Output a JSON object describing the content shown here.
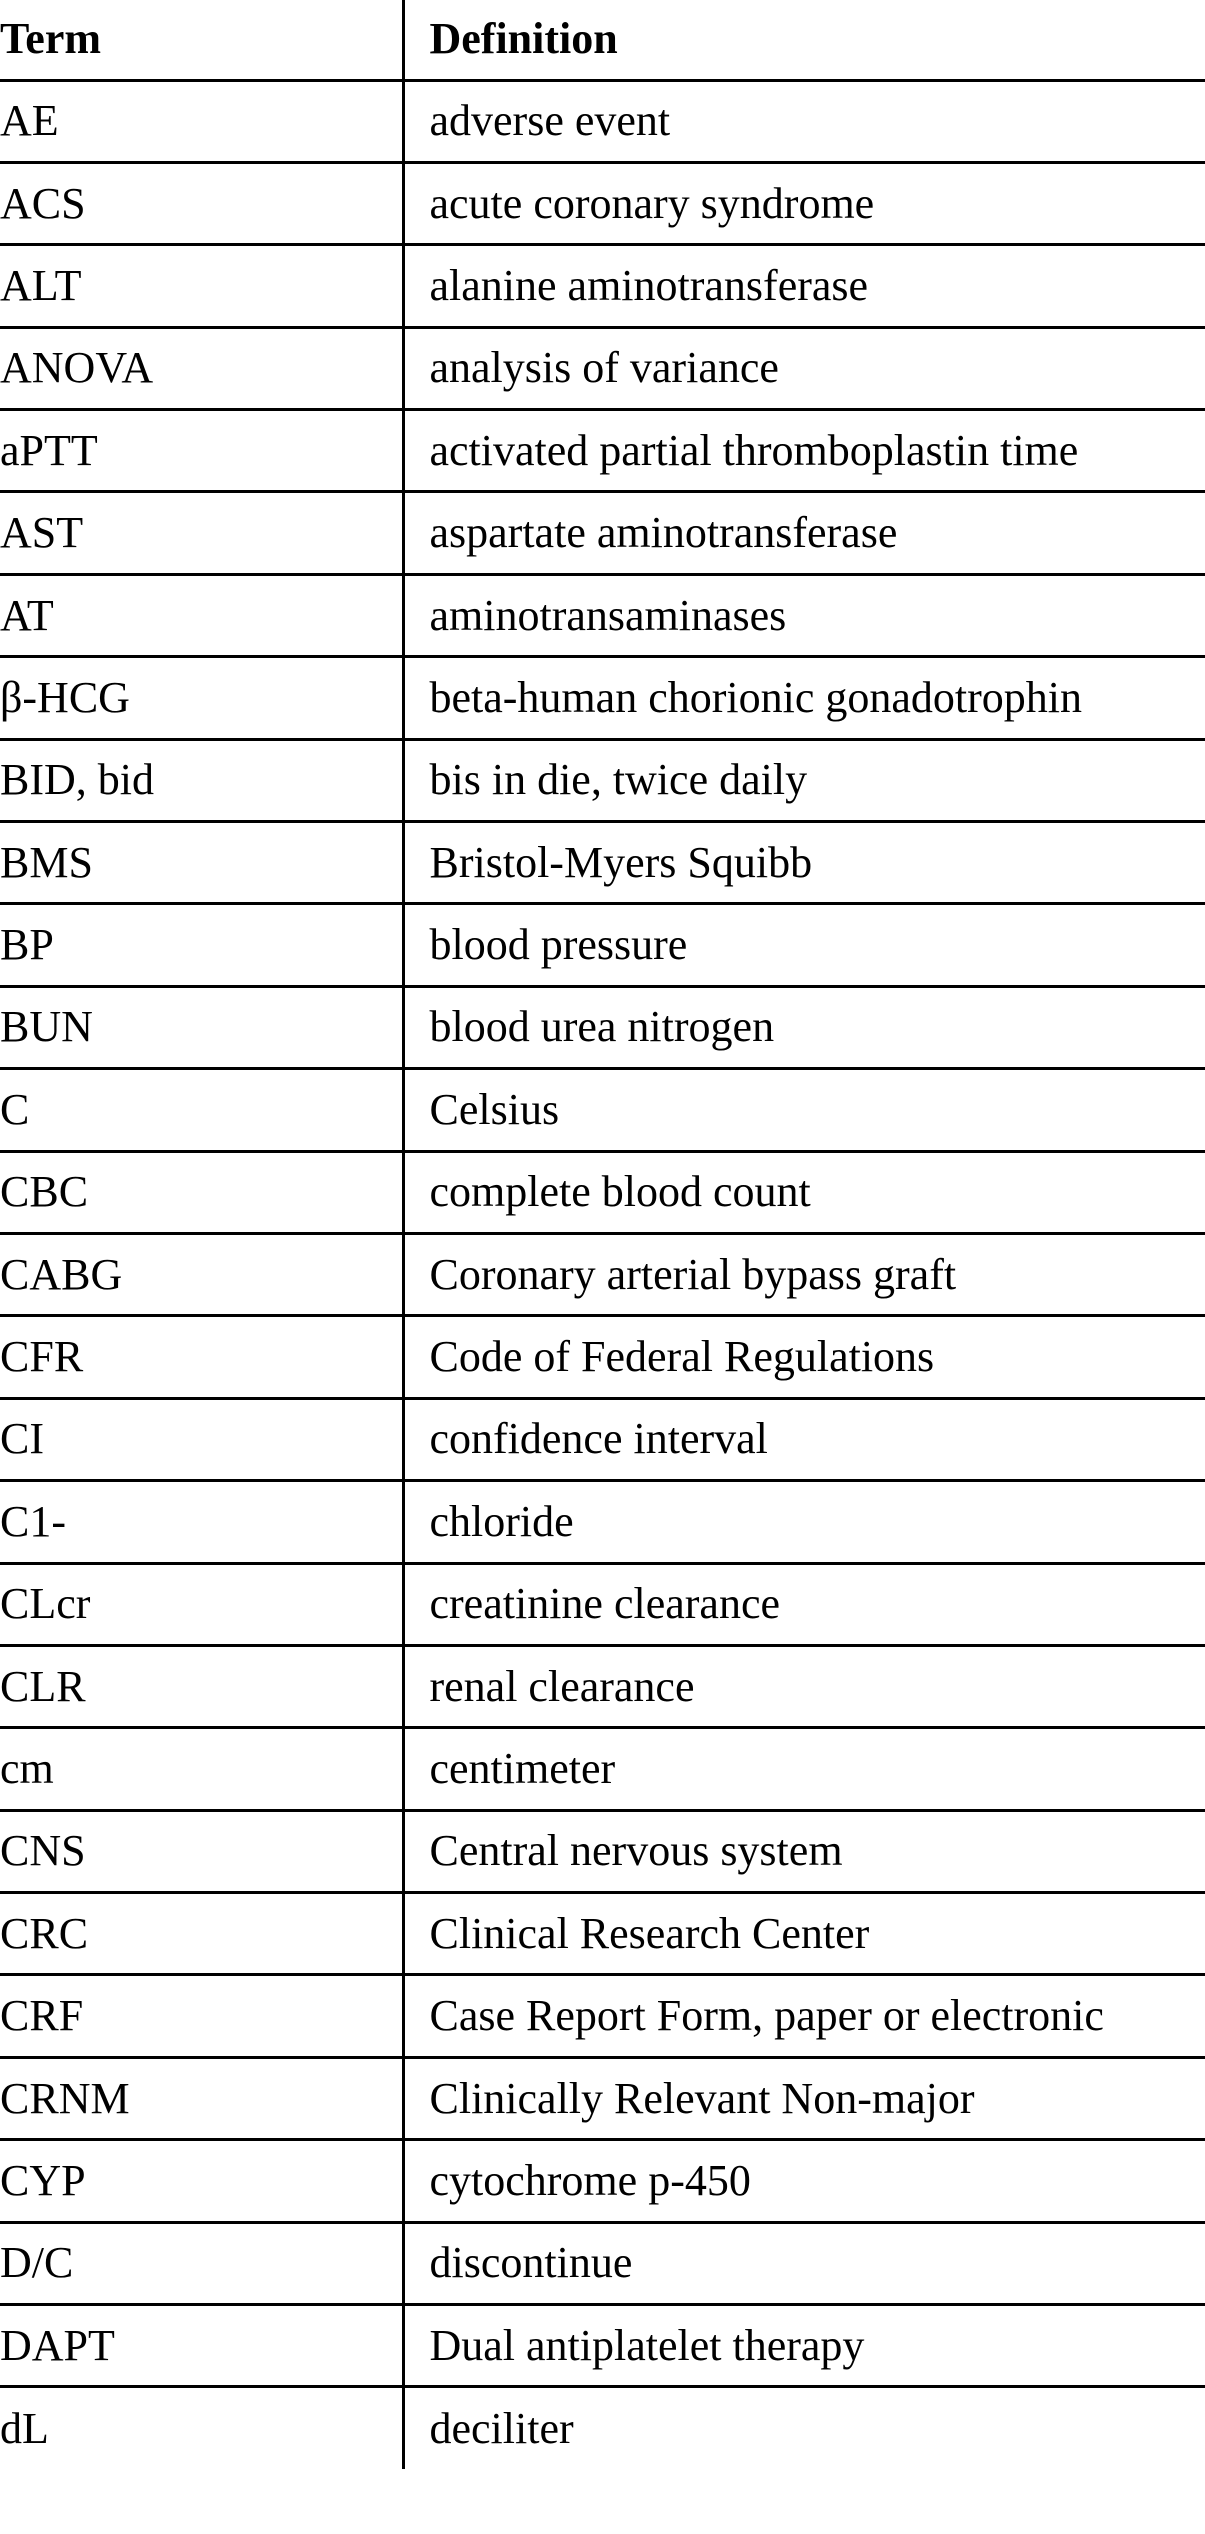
{
  "table": {
    "headers": {
      "term": "Term",
      "definition": "Definition"
    },
    "rows": [
      {
        "term": "AE",
        "definition": "adverse event"
      },
      {
        "term": "ACS",
        "definition": "acute coronary syndrome"
      },
      {
        "term": "ALT",
        "definition": "alanine aminotransferase"
      },
      {
        "term": "ANOVA",
        "definition": "analysis of variance"
      },
      {
        "term": "aPTT",
        "definition": "activated partial thromboplastin time"
      },
      {
        "term": "AST",
        "definition": "aspartate aminotransferase"
      },
      {
        "term": "AT",
        "definition": "aminotransaminases"
      },
      {
        "term": "β-HCG",
        "definition": "beta-human chorionic gonadotrophin"
      },
      {
        "term": "BID, bid",
        "definition": "bis in die, twice daily"
      },
      {
        "term": "BMS",
        "definition": "Bristol-Myers Squibb"
      },
      {
        "term": "BP",
        "definition": "blood pressure"
      },
      {
        "term": "BUN",
        "definition": "blood urea nitrogen"
      },
      {
        "term": "C",
        "definition": "Celsius"
      },
      {
        "term": "CBC",
        "definition": "complete blood count"
      },
      {
        "term": "CABG",
        "definition": "Coronary arterial bypass graft"
      },
      {
        "term": "CFR",
        "definition": "Code of Federal Regulations"
      },
      {
        "term": "CI",
        "definition": "confidence interval"
      },
      {
        "term": "C1-",
        "definition": "chloride"
      },
      {
        "term": "CLcr",
        "definition": "creatinine clearance"
      },
      {
        "term": "CLR",
        "definition": "renal clearance"
      },
      {
        "term": "cm",
        "definition": "centimeter"
      },
      {
        "term": "CNS",
        "definition": "Central nervous system"
      },
      {
        "term": "CRC",
        "definition": "Clinical Research Center"
      },
      {
        "term": "CRF",
        "definition": "Case Report Form, paper or electronic"
      },
      {
        "term": "CRNM",
        "definition": "Clinically Relevant Non-major"
      },
      {
        "term": "CYP",
        "definition": "cytochrome p-450"
      },
      {
        "term": "D/C",
        "definition": "discontinue"
      },
      {
        "term": "DAPT",
        "definition": "Dual antiplatelet therapy"
      },
      {
        "term": "dL",
        "definition": "deciliter"
      }
    ]
  }
}
